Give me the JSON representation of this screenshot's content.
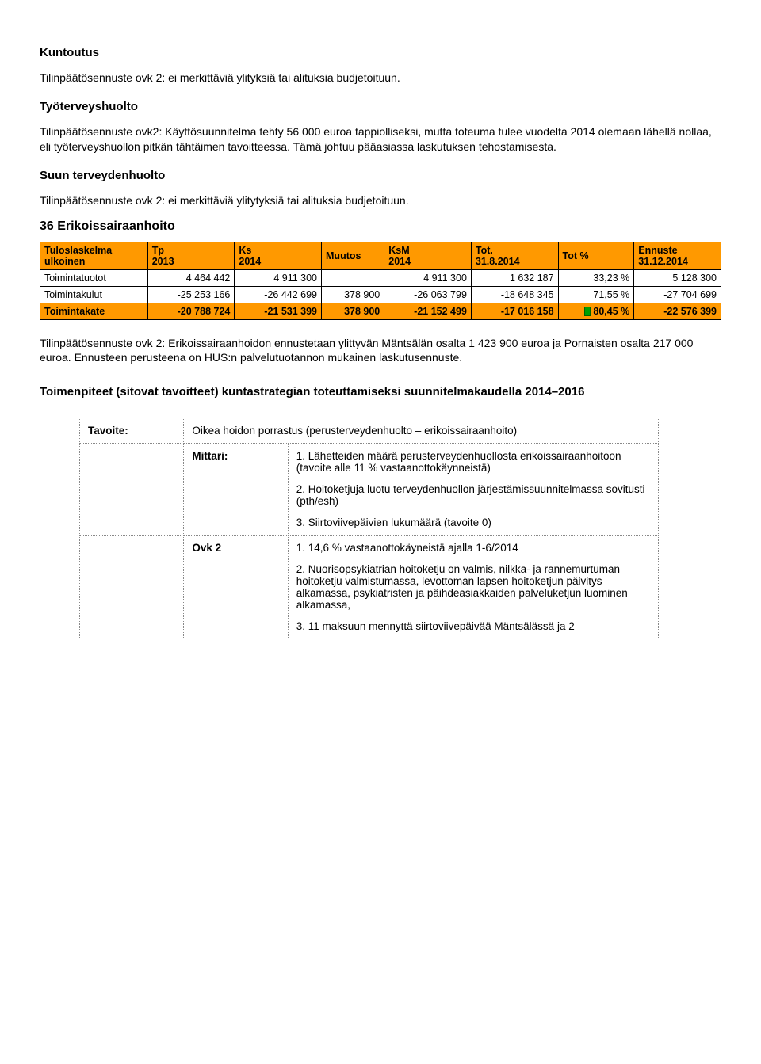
{
  "sections": {
    "kuntoutus": {
      "title": "Kuntoutus",
      "text": "Tilinpäätösennuste ovk 2: ei merkittäviä ylityksiä tai alituksia budjetoituun."
    },
    "tyoterveys": {
      "title": "Työterveyshuolto",
      "text": "Tilinpäätösennuste ovk2: Käyttösuunnitelma tehty 56 000 euroa tappiolliseksi, mutta toteuma tulee vuodelta 2014 olemaan lähellä nollaa, eli työterveyshuollon pitkän tähtäimen tavoitteessa. Tämä johtuu pääasiassa laskutuksen tehostamisesta."
    },
    "suun": {
      "title": "Suun terveydenhuolto",
      "text": "Tilinpäätösennuste ovk 2: ei merkittäviä ylitytyksiä tai alituksia budjetoituun."
    },
    "erikois": {
      "title": "36 Erikoissairaanhoito"
    }
  },
  "chart": {
    "type": "table",
    "header_bg": "#ff9900",
    "total_bg": "#ff9900",
    "border_color": "#000000",
    "font_size": 12.5,
    "headers_row1": [
      "Tuloslaskelma",
      "Tp",
      "Ks",
      "Muutos",
      "KsM",
      "Tot.",
      "Tot %",
      "Ennuste"
    ],
    "headers_row2": [
      "ulkoinen",
      "2013",
      "2014",
      "",
      "2014",
      "31.8.2014",
      "",
      "31.12.2014"
    ],
    "rows": [
      {
        "label": "Toimintatuotot",
        "tp": "4 464 442",
        "ks": "4 911 300",
        "muutos": "",
        "ksm": "4 911 300",
        "tot": "1 632 187",
        "totpct": "33,23 %",
        "ennuste": "5 128 300",
        "highlight": false
      },
      {
        "label": "Toimintakulut",
        "tp": "-25 253 166",
        "ks": "-26 442 699",
        "muutos": "378 900",
        "ksm": "-26 063 799",
        "tot": "-18 648 345",
        "totpct": "71,55 %",
        "ennuste": "-27 704 699",
        "highlight": false
      },
      {
        "label": "Toimintakate",
        "tp": "-20 788 724",
        "ks": "-21 531 399",
        "muutos": "378 900",
        "ksm": "-21 152 499",
        "tot": "-17 016 158",
        "totpct": "80,45 %",
        "ennuste": "-22 576 399",
        "highlight": true
      }
    ],
    "green_marker_color": "#00a000"
  },
  "paragraph_after_table": "Tilinpäätösennuste ovk 2: Erikoissairaanhoidon ennustetaan ylittyvän Mäntsälän osalta 1 423 900 euroa ja Pornaisten osalta 217 000 euroa. Ennusteen perusteena on HUS:n palvelutuotannon mukainen laskutusennuste.",
  "subheading": "Toimenpiteet (sitovat tavoitteet) kuntastrategian toteuttamiseksi suunnitelma­kaudella 2014–2016",
  "gridtable": {
    "tavoite_label": "Tavoite:",
    "tavoite_text": "Oikea hoidon porrastus (perusterveydenhuolto – erikoissairaanhoito)",
    "mittari_label": "Mittari:",
    "mittari_items": [
      "1. Lähetteiden määrä perusterveydenhuollosta erikoissairaanhoitoon (tavoite alle 11 % vastaanottokäynneistä)",
      "2. Hoitoketjuja luotu terveydenhuollon järjestämissuunnitelmassa sovitusti (pth/esh)",
      "3. Siirtoviivepäivien lukumäärä (tavoite 0)"
    ],
    "ovk_label": "Ovk 2",
    "ovk_items": [
      "1. 14,6 % vastaanottokäyneistä ajalla 1-6/2014",
      "2. Nuorisopsykiatrian hoitoketju on valmis, nilkka- ja rannemurtuman hoitoketju valmistumassa, levottoman lapsen hoitoketjun päivitys alkamassa, psykiatristen ja päihdeasiakkaiden palveluketjun luominen alkamassa,",
      "3. 11 maksuun mennyttä siirtoviivepäivää Mäntsälässä ja 2"
    ]
  }
}
